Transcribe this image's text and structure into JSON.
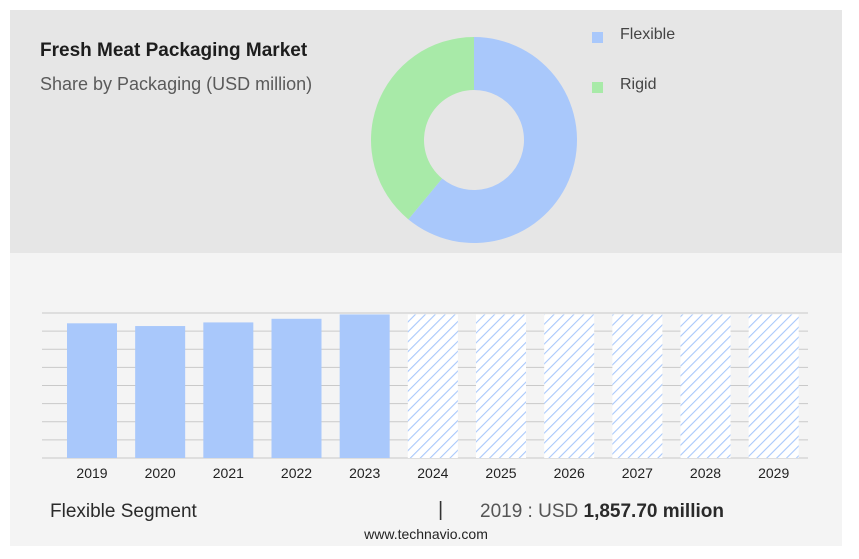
{
  "title": "Fresh Meat Packaging Market",
  "subtitle": "Share by Packaging (USD million)",
  "legend": [
    {
      "label": "Flexible",
      "color": "#a9c8fb"
    },
    {
      "label": "Rigid",
      "color": "#a8eaa8"
    }
  ],
  "chart_data": [
    {
      "type": "pie",
      "donut": true,
      "slices": [
        {
          "label": "Flexible",
          "share": 0.61,
          "color": "#a9c8fb"
        },
        {
          "label": "Rigid",
          "share": 0.39,
          "color": "#a8eaa8"
        }
      ]
    },
    {
      "type": "bar",
      "categories": [
        "2019",
        "2020",
        "2021",
        "2022",
        "2023",
        "2024",
        "2025",
        "2026",
        "2027",
        "2028",
        "2029"
      ],
      "values": [
        1857.7,
        1820,
        1870,
        1920,
        1980,
        1980,
        1980,
        1980,
        1980,
        1980,
        1980
      ],
      "forecast_from": "2024",
      "color": "#a9c8fb",
      "ylim": [
        0,
        2000
      ],
      "grid": true
    }
  ],
  "segment": {
    "label": "Flexible Segment",
    "divider": "|",
    "year_prefix": "2019 : USD",
    "value": "1,857.70 million"
  },
  "footer": "www.technavio.com"
}
